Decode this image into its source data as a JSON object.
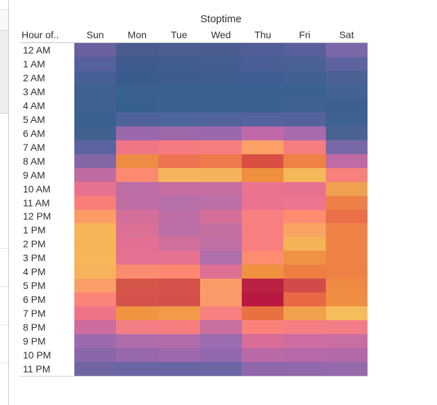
{
  "header": {
    "title": "Stoptime",
    "corner_label": "Hour of.."
  },
  "chart_data": {
    "type": "heatmap",
    "title": "Stoptime",
    "x_categories": [
      "Sun",
      "Mon",
      "Tue",
      "Wed",
      "Thu",
      "Fri",
      "Sat"
    ],
    "y_axis_label": "Hour of..",
    "y_categories": [
      "12 AM",
      "1 AM",
      "2 AM",
      "3 AM",
      "4 AM",
      "5 AM",
      "6 AM",
      "7 AM",
      "8 AM",
      "9 AM",
      "10 AM",
      "11 AM",
      "12 PM",
      "1 PM",
      "2 PM",
      "3 PM",
      "4 PM",
      "5 PM",
      "6 PM",
      "7 PM",
      "8 PM",
      "9 PM",
      "10 PM",
      "11 PM"
    ],
    "color_scale": {
      "low": "#36608d",
      "mid": "#c66da1",
      "high": "#f4b456",
      "max": "#b91940",
      "description": "dark blue = lowest, purple/pink = middle, salmon/orange/yellow = high, deep crimson = highest (Thu 5-6 PM)"
    },
    "legend": "none",
    "cell_colors": [
      [
        "#69609e",
        "#4a5c8e",
        "#4c5d8f",
        "#4b5d8f",
        "#515d96",
        "#595e9d",
        "#7c67a8"
      ],
      [
        "#55619b",
        "#3f5b8d",
        "#415d8f",
        "#425d8f",
        "#485e94",
        "#4a6193",
        "#5e63a0"
      ],
      [
        "#475f94",
        "#3a5c8d",
        "#3c5d8e",
        "#3d5e8f",
        "#405e91",
        "#426092",
        "#4c6295"
      ],
      [
        "#3f6190",
        "#39618e",
        "#38618f",
        "#3a628f",
        "#3a6190",
        "#3b6190",
        "#446394"
      ],
      [
        "#3d6191",
        "#36608d",
        "#39628f",
        "#3a628f",
        "#3a618e",
        "#3d6291",
        "#3c6190"
      ],
      [
        "#396190",
        "#4f639a",
        "#4c659b",
        "#50649b",
        "#55639e",
        "#54639d",
        "#3d6291"
      ],
      [
        "#43618e",
        "#9c68ac",
        "#9e68ab",
        "#9b68ad",
        "#c169a8",
        "#a86aac",
        "#4b6392"
      ],
      [
        "#5b64a0",
        "#ef7486",
        "#f47b80",
        "#f57d7e",
        "#fba167",
        "#f57d7d",
        "#7968a7"
      ],
      [
        "#8467a5",
        "#ee8c44",
        "#ee7350",
        "#ef7a4b",
        "#d94f44",
        "#ed8244",
        "#c16aa3"
      ],
      [
        "#c06ba1",
        "#fc8a70",
        "#f7b45c",
        "#f6b35c",
        "#ef903f",
        "#f4b95a",
        "#f7807b"
      ],
      [
        "#e7728f",
        "#bd6da5",
        "#c66da1",
        "#c66da1",
        "#ec7390",
        "#e7728f",
        "#f0a150"
      ],
      [
        "#f87e7a",
        "#be6da5",
        "#b56fa9",
        "#bb6fa7",
        "#ec7390",
        "#ec7590",
        "#ed8046"
      ],
      [
        "#fc9b66",
        "#d46e9a",
        "#bd6da6",
        "#d56f99",
        "#f87f80",
        "#fd8c71",
        "#eb6f49"
      ],
      [
        "#f8b459",
        "#da7095",
        "#bc6fa7",
        "#c56fa1",
        "#f87f7f",
        "#f9a463",
        "#ee8247"
      ],
      [
        "#f6b458",
        "#e37093",
        "#cf6f9c",
        "#c070a5",
        "#f87f7f",
        "#f4b456",
        "#ee8345"
      ],
      [
        "#f6b659",
        "#e57292",
        "#e67290",
        "#ae6fab",
        "#fd8c71",
        "#f09243",
        "#ee8345"
      ],
      [
        "#f7b25c",
        "#fc8c6f",
        "#fc886f",
        "#dd7094",
        "#f09140",
        "#ee7e43",
        "#ed8244"
      ],
      [
        "#f99e68",
        "#d5564b",
        "#d4534a",
        "#fb9c68",
        "#bb2142",
        "#d14b49",
        "#ee8a41"
      ],
      [
        "#fa8479",
        "#d4534b",
        "#d2524b",
        "#fb9a69",
        "#b91940",
        "#e86843",
        "#ef8e42"
      ],
      [
        "#ee7389",
        "#f09441",
        "#f19b4a",
        "#f77f7f",
        "#e7713f",
        "#f0a14b",
        "#f6bb5b"
      ],
      [
        "#cc6d9e",
        "#f47e85",
        "#f77d81",
        "#c96f9f",
        "#fb827b",
        "#f67e82",
        "#f27d86"
      ],
      [
        "#9c69ac",
        "#ae6cab",
        "#b06ca9",
        "#9c6cb0",
        "#d76d98",
        "#cc6ca0",
        "#c96ea1"
      ],
      [
        "#8a67a8",
        "#9768ac",
        "#9d68ac",
        "#9168ae",
        "#bb68a7",
        "#b669a9",
        "#b369a9"
      ],
      [
        "#7165a1",
        "#6965a4",
        "#6765a3",
        "#6c66a6",
        "#8f68ac",
        "#9168ab",
        "#9669aa"
      ]
    ]
  }
}
